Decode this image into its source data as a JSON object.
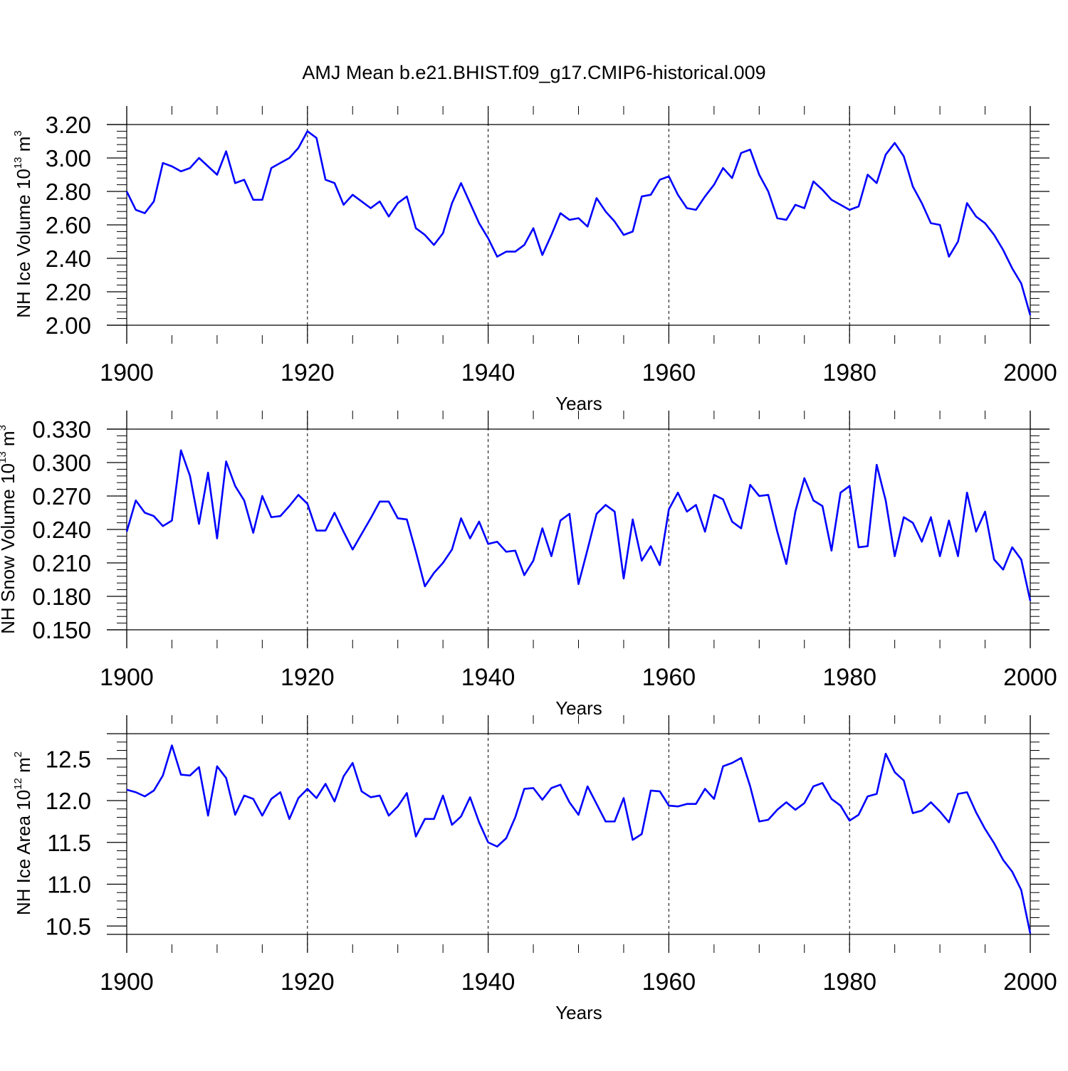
{
  "title": "AMJ Mean b.e21.BHIST.f09_g17.CMIP6-historical.009",
  "colors": {
    "series": "#0000ff",
    "axes": "#000000",
    "grid": "#000000"
  },
  "chart_data": [
    {
      "type": "line",
      "xlabel": "Years",
      "ylabel_main": "NH Ice Volume 10",
      "ylabel_exp": "13",
      "ylabel_unit_base": "m",
      "ylabel_unit_exp": "3",
      "xlim": [
        1900,
        2000
      ],
      "ylim": [
        2.0,
        3.2
      ],
      "x_ticks": [
        "1900",
        "1920",
        "1940",
        "1960",
        "1980",
        "2000"
      ],
      "y_ticks": [
        "2.00",
        "2.20",
        "2.40",
        "2.60",
        "2.80",
        "3.00",
        "3.20"
      ],
      "x_start": 1900,
      "values": [
        2.8,
        2.69,
        2.67,
        2.74,
        2.97,
        2.95,
        2.92,
        2.94,
        3.0,
        2.95,
        2.9,
        3.04,
        2.85,
        2.87,
        2.75,
        2.75,
        2.94,
        2.97,
        3.0,
        3.06,
        3.16,
        3.12,
        2.87,
        2.85,
        2.72,
        2.78,
        2.74,
        2.7,
        2.74,
        2.65,
        2.73,
        2.77,
        2.58,
        2.54,
        2.48,
        2.55,
        2.73,
        2.85,
        2.73,
        2.61,
        2.52,
        2.41,
        2.44,
        2.44,
        2.48,
        2.58,
        2.42,
        2.54,
        2.67,
        2.63,
        2.64,
        2.59,
        2.76,
        2.68,
        2.62,
        2.54,
        2.56,
        2.77,
        2.78,
        2.87,
        2.89,
        2.78,
        2.7,
        2.69,
        2.77,
        2.84,
        2.94,
        2.88,
        3.03,
        3.05,
        2.9,
        2.8,
        2.64,
        2.63,
        2.72,
        2.7,
        2.86,
        2.81,
        2.75,
        2.72,
        2.69,
        2.71,
        2.9,
        2.85,
        3.02,
        3.09,
        3.01,
        2.83,
        2.73,
        2.61,
        2.6,
        2.41,
        2.5,
        2.73,
        2.65,
        2.61,
        2.54,
        2.45,
        2.34,
        2.25,
        2.06
      ]
    },
    {
      "type": "line",
      "xlabel": "Years",
      "ylabel_main": "NH Snow Volume 10",
      "ylabel_exp": "13",
      "ylabel_unit_base": "m",
      "ylabel_unit_exp": "3",
      "xlim": [
        1900,
        2000
      ],
      "ylim": [
        0.15,
        0.33
      ],
      "x_ticks": [
        "1900",
        "1920",
        "1940",
        "1960",
        "1980",
        "2000"
      ],
      "y_ticks": [
        "0.150",
        "0.180",
        "0.210",
        "0.240",
        "0.270",
        "0.300",
        "0.330"
      ],
      "x_start": 1900,
      "values": [
        0.238,
        0.266,
        0.255,
        0.252,
        0.243,
        0.248,
        0.311,
        0.288,
        0.245,
        0.291,
        0.232,
        0.301,
        0.279,
        0.266,
        0.237,
        0.27,
        0.251,
        0.252,
        0.261,
        0.271,
        0.263,
        0.239,
        0.239,
        0.255,
        0.238,
        0.222,
        0.236,
        0.25,
        0.265,
        0.265,
        0.25,
        0.249,
        0.22,
        0.189,
        0.201,
        0.21,
        0.222,
        0.25,
        0.232,
        0.247,
        0.227,
        0.229,
        0.22,
        0.221,
        0.199,
        0.212,
        0.241,
        0.216,
        0.248,
        0.254,
        0.191,
        0.222,
        0.254,
        0.262,
        0.256,
        0.196,
        0.249,
        0.212,
        0.225,
        0.208,
        0.258,
        0.273,
        0.256,
        0.262,
        0.238,
        0.271,
        0.267,
        0.247,
        0.241,
        0.28,
        0.27,
        0.271,
        0.238,
        0.209,
        0.256,
        0.286,
        0.266,
        0.261,
        0.221,
        0.273,
        0.279,
        0.224,
        0.225,
        0.298,
        0.266,
        0.216,
        0.251,
        0.246,
        0.229,
        0.251,
        0.216,
        0.248,
        0.216,
        0.273,
        0.238,
        0.256,
        0.213,
        0.204,
        0.224,
        0.213,
        0.176
      ]
    },
    {
      "type": "line",
      "xlabel": "Years",
      "ylabel_main": "NH Ice Area 10",
      "ylabel_exp": "12",
      "ylabel_unit_base": "m",
      "ylabel_unit_exp": "2",
      "xlim": [
        1900,
        2000
      ],
      "ylim": [
        10.4,
        12.8
      ],
      "x_ticks": [
        "1900",
        "1920",
        "1940",
        "1960",
        "1980",
        "2000"
      ],
      "y_ticks": [
        "10.5",
        "11.0",
        "11.5",
        "12.0",
        "12.5"
      ],
      "y_tick_values": [
        10.5,
        11.0,
        11.5,
        12.0,
        12.5
      ],
      "x_start": 1900,
      "values": [
        12.13,
        12.1,
        12.05,
        12.12,
        12.3,
        12.66,
        12.31,
        12.3,
        12.4,
        11.82,
        12.41,
        12.27,
        11.83,
        12.06,
        12.02,
        11.82,
        12.02,
        12.1,
        11.78,
        12.03,
        12.14,
        12.03,
        12.2,
        11.99,
        12.29,
        12.45,
        12.11,
        12.04,
        12.06,
        11.82,
        11.93,
        12.09,
        11.57,
        11.78,
        11.78,
        12.06,
        11.71,
        11.81,
        12.04,
        11.74,
        11.5,
        11.45,
        11.55,
        11.8,
        12.14,
        12.15,
        12.01,
        12.15,
        12.19,
        11.98,
        11.83,
        12.17,
        11.96,
        11.75,
        11.75,
        12.03,
        11.53,
        11.6,
        12.12,
        12.11,
        11.94,
        11.93,
        11.96,
        11.96,
        12.14,
        12.02,
        12.41,
        12.45,
        12.51,
        12.17,
        11.75,
        11.77,
        11.89,
        11.98,
        11.89,
        11.97,
        12.17,
        12.21,
        12.02,
        11.94,
        11.76,
        11.83,
        12.05,
        12.08,
        12.56,
        12.34,
        12.24,
        11.85,
        11.88,
        11.98,
        11.87,
        11.74,
        12.08,
        12.1,
        11.86,
        11.66,
        11.49,
        11.29,
        11.15,
        10.93,
        10.41
      ]
    }
  ]
}
